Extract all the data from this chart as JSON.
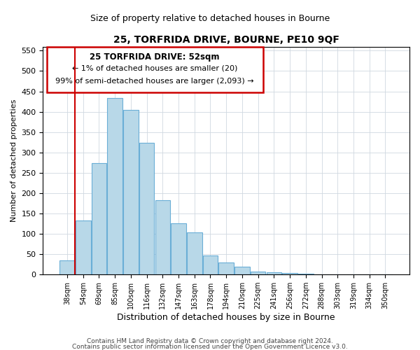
{
  "title": "25, TORFRIDA DRIVE, BOURNE, PE10 9QF",
  "subtitle": "Size of property relative to detached houses in Bourne",
  "xlabel": "Distribution of detached houses by size in Bourne",
  "ylabel": "Number of detached properties",
  "bar_labels": [
    "38sqm",
    "54sqm",
    "69sqm",
    "85sqm",
    "100sqm",
    "116sqm",
    "132sqm",
    "147sqm",
    "163sqm",
    "178sqm",
    "194sqm",
    "210sqm",
    "225sqm",
    "241sqm",
    "256sqm",
    "272sqm",
    "288sqm",
    "303sqm",
    "319sqm",
    "334sqm",
    "350sqm"
  ],
  "bar_values": [
    35,
    132,
    273,
    433,
    405,
    323,
    182,
    126,
    103,
    46,
    30,
    20,
    8,
    6,
    3,
    2,
    1,
    1,
    0,
    0,
    1
  ],
  "bar_color": "#b8d8e8",
  "bar_edge_color": "#6aaed6",
  "marker_color": "#cc0000",
  "ylim": [
    0,
    560
  ],
  "yticks": [
    0,
    50,
    100,
    150,
    200,
    250,
    300,
    350,
    400,
    450,
    500,
    550
  ],
  "annotation_title": "25 TORFRIDA DRIVE: 52sqm",
  "annotation_line1": "← 1% of detached houses are smaller (20)",
  "annotation_line2": "99% of semi-detached houses are larger (2,093) →",
  "footer1": "Contains HM Land Registry data © Crown copyright and database right 2024.",
  "footer2": "Contains public sector information licensed under the Open Government Licence v3.0."
}
